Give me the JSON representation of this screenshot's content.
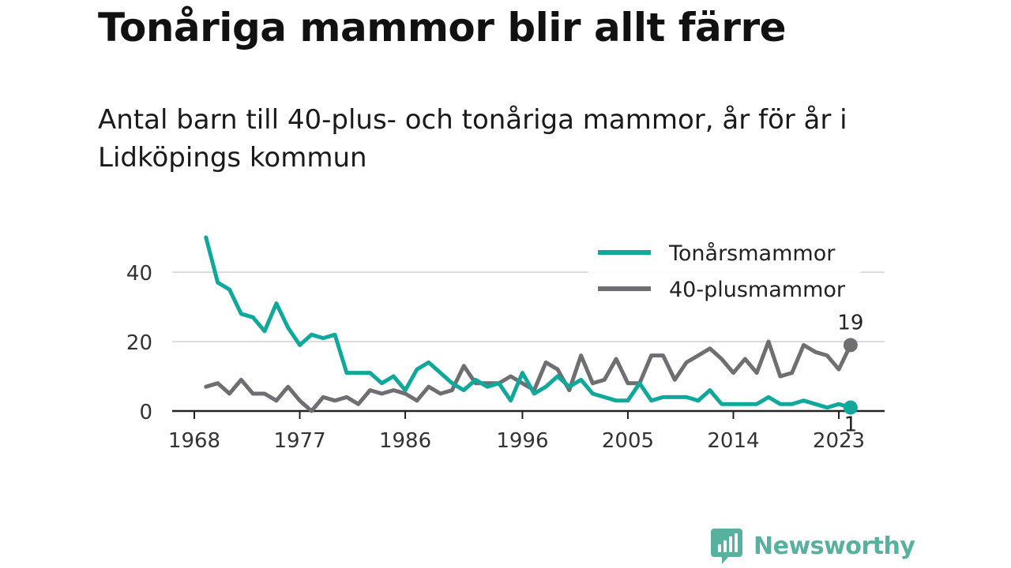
{
  "title": "Tonåriga mammor blir allt färre",
  "subtitle": "Antal barn till 40-plus- och tonåriga mammor, år för år i Lidköpings kommun",
  "brand": {
    "name": "Newsworthy",
    "icon": "newsworthy-logo-icon",
    "color": "#58b09f"
  },
  "chart_data": {
    "type": "line",
    "x_ticks": [
      "1968",
      "1977",
      "1986",
      "1996",
      "2005",
      "2014",
      "2023"
    ],
    "y_ticks": [
      "0",
      "20",
      "40"
    ],
    "ylim": [
      0,
      50
    ],
    "grid": true,
    "legend_position": "top-right",
    "x": [
      1969,
      1970,
      1971,
      1972,
      1973,
      1974,
      1975,
      1976,
      1977,
      1978,
      1979,
      1980,
      1981,
      1982,
      1983,
      1984,
      1985,
      1986,
      1987,
      1988,
      1989,
      1990,
      1991,
      1992,
      1993,
      1994,
      1995,
      1996,
      1997,
      1998,
      1999,
      2000,
      2001,
      2002,
      2003,
      2004,
      2005,
      2006,
      2007,
      2008,
      2009,
      2010,
      2011,
      2012,
      2013,
      2014,
      2015,
      2016,
      2017,
      2018,
      2019,
      2020,
      2021,
      2022,
      2023,
      2024
    ],
    "series": [
      {
        "name": "Tonårsmammor",
        "color": "#0fa89a",
        "end_label": "1",
        "values": [
          50,
          37,
          35,
          28,
          27,
          23,
          31,
          24,
          19,
          22,
          21,
          22,
          11,
          11,
          11,
          8,
          10,
          6,
          12,
          14,
          11,
          8,
          6,
          9,
          7,
          8,
          3,
          11,
          5,
          7,
          10,
          7,
          9,
          5,
          4,
          3,
          3,
          8,
          3,
          4,
          4,
          4,
          3,
          6,
          2,
          2,
          2,
          2,
          4,
          2,
          2,
          3,
          2,
          1,
          2,
          1
        ]
      },
      {
        "name": "40-plusmammor",
        "color": "#6e6e73",
        "end_label": "19",
        "values": [
          7,
          8,
          5,
          9,
          5,
          5,
          3,
          7,
          3,
          0,
          4,
          3,
          4,
          2,
          6,
          5,
          6,
          5,
          3,
          7,
          5,
          6,
          13,
          8,
          8,
          8,
          10,
          8,
          6,
          14,
          12,
          6,
          16,
          8,
          9,
          15,
          8,
          8,
          16,
          16,
          9,
          14,
          16,
          18,
          15,
          11,
          15,
          11,
          20,
          10,
          11,
          19,
          17,
          16,
          12,
          19
        ]
      }
    ]
  }
}
